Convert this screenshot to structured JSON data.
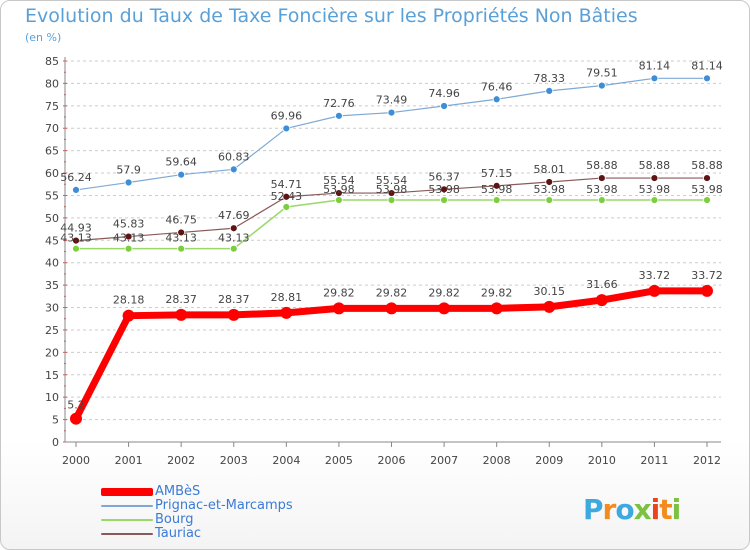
{
  "title": "Evolution du Taux de Taxe Foncière sur les Propriétés Non Bâties",
  "unit_label": "(en %)",
  "logo": {
    "text": "Proxiti",
    "letters": [
      "P",
      "r",
      "o",
      "x",
      "i",
      "t",
      "i"
    ],
    "letter_colors": [
      "#3da9e0",
      "#f28c1e",
      "#3da9e0",
      "#7cc242",
      "#e8471c",
      "#f28c1e",
      "#7cc242"
    ]
  },
  "chart_data": {
    "type": "line",
    "title": "Evolution du Taux de Taxe Foncière sur les Propriétés Non Bâties",
    "ylabel": "(en %)",
    "xlabel": "",
    "categories": [
      "2000",
      "2001",
      "2002",
      "2003",
      "2004",
      "2005",
      "2006",
      "2007",
      "2008",
      "2009",
      "2010",
      "2011",
      "2012"
    ],
    "ylim": [
      0,
      85
    ],
    "yticks": [
      0,
      5,
      10,
      15,
      20,
      25,
      30,
      35,
      40,
      45,
      50,
      55,
      60,
      65,
      70,
      75,
      80,
      85
    ],
    "grid": "horizontal-dashed",
    "series": [
      {
        "name": "AMBèS",
        "color": "#ff0000",
        "marker_color": "#ff0000",
        "label_color": "#ffffff",
        "line_width": 7,
        "marker_radius": 6,
        "values": [
          5.2,
          28.18,
          28.37,
          28.37,
          28.81,
          29.82,
          29.82,
          29.82,
          29.82,
          30.15,
          31.66,
          33.72,
          33.72
        ],
        "labels": [
          "5.2",
          "28.18",
          "28.37",
          "28.37",
          "28.81",
          "29.82",
          "29.82",
          "29.82",
          "29.82",
          "30.15",
          "31.66",
          "33.72",
          "33.72"
        ]
      },
      {
        "name": "Prignac-et-Marcamps",
        "color": "#7fa9d4",
        "marker_color": "#3d8ed6",
        "label_color": "#444444",
        "line_width": 1.2,
        "marker_radius": 3.5,
        "values": [
          56.24,
          57.9,
          59.64,
          60.83,
          69.96,
          72.76,
          73.49,
          74.96,
          76.46,
          78.33,
          79.51,
          81.14,
          81.14
        ],
        "labels": [
          "56.24",
          "57.9",
          "59.64",
          "60.83",
          "69.96",
          "72.76",
          "73.49",
          "74.96",
          "76.46",
          "78.33",
          "79.51",
          "81.14",
          "81.14"
        ]
      },
      {
        "name": "Bourg",
        "color": "#9ad86a",
        "marker_color": "#7ccf3c",
        "label_color": "#444444",
        "line_width": 1.5,
        "marker_radius": 3.5,
        "values": [
          43.13,
          43.13,
          43.13,
          43.13,
          52.43,
          53.98,
          53.98,
          53.98,
          53.98,
          53.98,
          53.98,
          53.98,
          53.98
        ],
        "labels": [
          "43.13",
          "43.13",
          "43.13",
          "43.13",
          "52.43",
          "53.98",
          "53.98",
          "53.98",
          "53.98",
          "53.98",
          "53.98",
          "53.98",
          "53.98"
        ]
      },
      {
        "name": "Tauriac",
        "color": "#8a5a5a",
        "marker_color": "#5e1414",
        "label_color": "#444444",
        "line_width": 1.2,
        "marker_radius": 3.5,
        "values": [
          44.93,
          45.83,
          46.75,
          47.69,
          54.71,
          55.54,
          55.54,
          56.37,
          57.15,
          58.01,
          58.88,
          58.88,
          58.88
        ],
        "labels": [
          "44.93",
          "45.83",
          "46.75",
          "47.69",
          "54.71",
          "55.54",
          "55.54",
          "56.37",
          "57.15",
          "58.01",
          "58.88",
          "58.88",
          "58.88"
        ]
      }
    ],
    "legend_position": "bottom-left"
  }
}
